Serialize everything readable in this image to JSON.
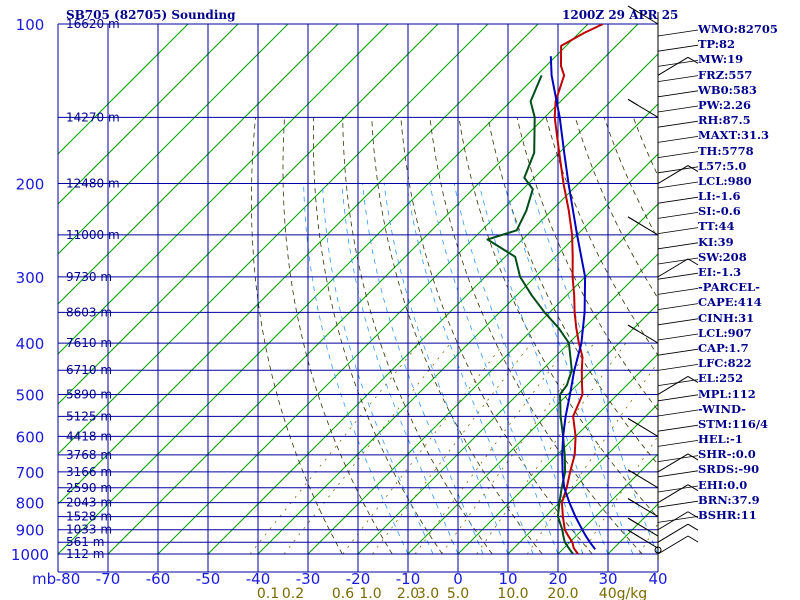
{
  "header": {
    "title": "SB705 (82705) Sounding",
    "timestamp": "1200Z 29 APR 25"
  },
  "indices": [
    "WMO:82705",
    "TP:82",
    "MW:19",
    "FRZ:557",
    "WB0:583",
    "PW:2.26",
    "RH:87.5",
    "MAXT:31.3",
    "TH:5778",
    "L57:5.0",
    "LCL:980",
    "LI:-1.6",
    "SI:-0.6",
    "TT:44",
    "KI:39",
    "SW:208",
    "EI:-1.3",
    "-PARCEL-",
    "CAPE:414",
    "CINH:31",
    "LCL:907",
    "CAP:1.7",
    "LFC:822",
    "EL:252",
    "MPL:112",
    "-WIND-",
    "STM:116/4",
    "HEL:-1",
    "SHR-:0.0",
    "SRDS:-90",
    "EHI:0.0",
    "BRN:37.9",
    "BSHR:11"
  ],
  "colors": {
    "isobar": "#0000a0",
    "isotherm": "#00a000",
    "dry_adiabat": "#333300",
    "moist_adiabat": "#3399ff",
    "mixing_ratio": "#7a6a00",
    "temperature": "#c00000",
    "dewpoint": "#004d1a",
    "parcel": "#0000c0",
    "labels": "#1a1adc"
  },
  "chart_data": {
    "type": "line",
    "title": "",
    "xlabel": "",
    "ylabel": "mb",
    "y_scale": "log",
    "ylim": [
      1000,
      100
    ],
    "xlim": [
      -80,
      40
    ],
    "skew": "45-degree skew-T",
    "pressure_ticks": [
      100,
      200,
      300,
      400,
      500,
      600,
      700,
      800,
      900,
      1000
    ],
    "temperature_ticks": [
      "-80",
      "-70",
      "-60",
      "-50",
      "-40",
      "-30",
      "-20",
      "-10",
      "0",
      "10",
      "20",
      "30",
      "40"
    ],
    "height_labels": [
      {
        "p": 100,
        "label": "16620 m"
      },
      {
        "p": 150,
        "label": "14270 m"
      },
      {
        "p": 200,
        "label": "12480 m"
      },
      {
        "p": 250,
        "label": "11000 m"
      },
      {
        "p": 300,
        "label": "9730 m"
      },
      {
        "p": 350,
        "label": "8603 m"
      },
      {
        "p": 400,
        "label": "7610 m"
      },
      {
        "p": 450,
        "label": "6710 m"
      },
      {
        "p": 500,
        "label": "5890 m"
      },
      {
        "p": 550,
        "label": "5125 m"
      },
      {
        "p": 600,
        "label": "4418 m"
      },
      {
        "p": 650,
        "label": "3768 m"
      },
      {
        "p": 700,
        "label": "3166 m"
      },
      {
        "p": 750,
        "label": "2590 m"
      },
      {
        "p": 800,
        "label": "2043 m"
      },
      {
        "p": 850,
        "label": "1528 m"
      },
      {
        "p": 900,
        "label": "1033 m"
      },
      {
        "p": 950,
        "label": "561 m"
      },
      {
        "p": 1000,
        "label": "112 m"
      }
    ],
    "mixing_ratio_labels": [
      {
        "label": "0.1",
        "x": -38
      },
      {
        "label": "0.2",
        "x": -33
      },
      {
        "label": "0.6",
        "x": -23
      },
      {
        "label": "1.0",
        "x": -17.5
      },
      {
        "label": "2.0",
        "x": -10
      },
      {
        "label": "3.0",
        "x": -6
      },
      {
        "label": "5.0",
        "x": 0
      },
      {
        "label": "10.0",
        "x": 11
      },
      {
        "label": "20.0",
        "x": 21
      },
      {
        "label": "40g/kg",
        "x": 33
      }
    ],
    "series": [
      {
        "key": "temperature",
        "points": [
          [
            1000,
            24.0
          ],
          [
            975,
            22.0
          ],
          [
            950,
            20.5
          ],
          [
            925,
            18.5
          ],
          [
            900,
            16.5
          ],
          [
            850,
            13.5
          ],
          [
            800,
            10.5
          ],
          [
            750,
            8.5
          ],
          [
            700,
            6.0
          ],
          [
            650,
            3.5
          ],
          [
            600,
            0.0
          ],
          [
            550,
            -4.5
          ],
          [
            500,
            -7.0
          ],
          [
            475,
            -9.5
          ],
          [
            450,
            -12.0
          ],
          [
            425,
            -14.5
          ],
          [
            400,
            -18.0
          ],
          [
            375,
            -21.5
          ],
          [
            350,
            -25.0
          ],
          [
            325,
            -28.5
          ],
          [
            300,
            -32.5
          ],
          [
            275,
            -36.5
          ],
          [
            250,
            -41.0
          ],
          [
            225,
            -46.5
          ],
          [
            200,
            -53.0
          ],
          [
            175,
            -60.0
          ],
          [
            150,
            -68.0
          ],
          [
            140,
            -71.0
          ],
          [
            125,
            -74.5
          ],
          [
            120,
            -77.0
          ],
          [
            110,
            -81.0
          ],
          [
            104,
            -79.0
          ],
          [
            100,
            -77.0
          ]
        ]
      },
      {
        "key": "dewpoint",
        "points": [
          [
            1000,
            23.0
          ],
          [
            975,
            21.0
          ],
          [
            950,
            19.0
          ],
          [
            925,
            17.5
          ],
          [
            900,
            16.0
          ],
          [
            850,
            12.5
          ],
          [
            800,
            10.0
          ],
          [
            750,
            7.5
          ],
          [
            700,
            5.0
          ],
          [
            650,
            1.5
          ],
          [
            600,
            -2.5
          ],
          [
            550,
            -7.0
          ],
          [
            500,
            -11.5
          ],
          [
            480,
            -12.0
          ],
          [
            450,
            -14.0
          ],
          [
            400,
            -20.0
          ],
          [
            375,
            -25.0
          ],
          [
            350,
            -31.0
          ],
          [
            325,
            -37.0
          ],
          [
            300,
            -43.0
          ],
          [
            275,
            -48.0
          ],
          [
            255,
            -57.0
          ],
          [
            245,
            -53.0
          ],
          [
            225,
            -55.0
          ],
          [
            205,
            -58.0
          ],
          [
            195,
            -62.0
          ],
          [
            175,
            -65.0
          ],
          [
            150,
            -72.0
          ],
          [
            140,
            -76.0
          ],
          [
            125,
            -79.0
          ]
        ]
      },
      {
        "key": "parcel",
        "points": [
          [
            980,
            26.5
          ],
          [
            950,
            24.0
          ],
          [
            925,
            22.0
          ],
          [
            900,
            20.0
          ],
          [
            850,
            16.0
          ],
          [
            800,
            12.0
          ],
          [
            750,
            8.0
          ],
          [
            700,
            4.5
          ],
          [
            650,
            1.0
          ],
          [
            600,
            -2.5
          ],
          [
            550,
            -6.0
          ],
          [
            500,
            -9.5
          ],
          [
            450,
            -13.5
          ],
          [
            400,
            -17.5
          ],
          [
            350,
            -23.0
          ],
          [
            300,
            -30.0
          ],
          [
            250,
            -40.0
          ],
          [
            200,
            -52.0
          ],
          [
            175,
            -59.0
          ],
          [
            150,
            -67.0
          ],
          [
            125,
            -77.0
          ],
          [
            115,
            -81.0
          ]
        ]
      }
    ],
    "wind_barbs_right": [
      1000,
      975,
      950,
      925,
      900,
      850,
      800,
      750,
      700,
      600,
      500,
      400,
      300,
      250,
      200,
      150,
      125,
      100
    ]
  }
}
